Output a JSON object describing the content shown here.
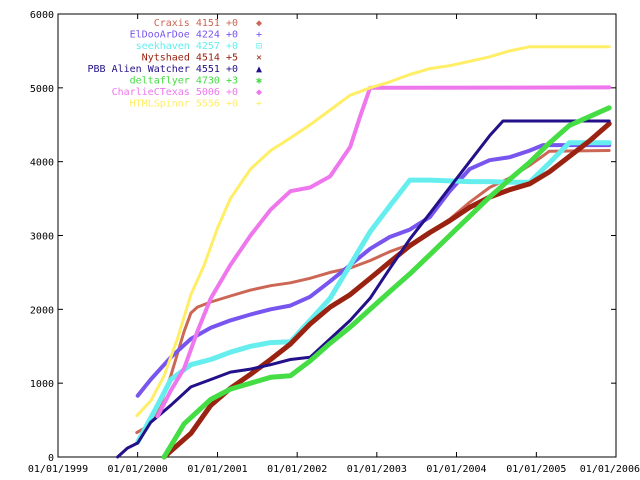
{
  "chart_data": {
    "type": "line",
    "title": "",
    "xlabel": "",
    "ylabel": "",
    "xlim": [
      "1999-01-01",
      "2006-01-01"
    ],
    "ylim": [
      0,
      6000
    ],
    "x_ticks": [
      "01/01/1999",
      "01/01/2000",
      "01/01/2001",
      "01/01/2002",
      "01/01/2003",
      "01/01/2004",
      "01/01/2005",
      "01/01/2006"
    ],
    "y_ticks": [
      0,
      1000,
      2000,
      3000,
      4000,
      5000,
      6000
    ],
    "grid": false,
    "legend_position": "top-center",
    "series": [
      {
        "name": "Craxis",
        "last": "4151",
        "delta": "+0",
        "marker": "◆",
        "color": "#cc6655",
        "width": 3,
        "points": [
          [
            "1999-12-28",
            330
          ],
          [
            "2000-02-01",
            390
          ],
          [
            "2000-04-01",
            600
          ],
          [
            "2000-06-01",
            1100
          ],
          [
            "2000-08-01",
            1700
          ],
          [
            "2000-09-01",
            1950
          ],
          [
            "2000-10-01",
            2030
          ],
          [
            "2000-12-01",
            2100
          ],
          [
            "2001-03-01",
            2180
          ],
          [
            "2001-06-01",
            2260
          ],
          [
            "2001-09-01",
            2320
          ],
          [
            "2001-12-01",
            2360
          ],
          [
            "2002-03-01",
            2420
          ],
          [
            "2002-06-01",
            2500
          ],
          [
            "2002-09-01",
            2560
          ],
          [
            "2002-12-01",
            2660
          ],
          [
            "2003-03-01",
            2780
          ],
          [
            "2003-06-01",
            2880
          ],
          [
            "2003-09-01",
            3040
          ],
          [
            "2003-12-01",
            3220
          ],
          [
            "2004-03-01",
            3450
          ],
          [
            "2004-06-01",
            3650
          ],
          [
            "2004-09-01",
            3780
          ],
          [
            "2004-12-01",
            3950
          ],
          [
            "2005-02-01",
            4080
          ],
          [
            "2005-03-01",
            4140
          ],
          [
            "2005-12-01",
            4151
          ]
        ]
      },
      {
        "name": "ElDooArDoe",
        "last": "4224",
        "delta": "+0",
        "marker": "+",
        "color": "#7755ee",
        "width": 4,
        "points": [
          [
            "2000-01-01",
            830
          ],
          [
            "2000-03-01",
            1050
          ],
          [
            "2000-06-01",
            1350
          ],
          [
            "2000-09-01",
            1600
          ],
          [
            "2000-12-01",
            1750
          ],
          [
            "2001-03-01",
            1850
          ],
          [
            "2001-06-01",
            1930
          ],
          [
            "2001-09-01",
            2000
          ],
          [
            "2001-12-01",
            2050
          ],
          [
            "2002-03-01",
            2170
          ],
          [
            "2002-06-01",
            2380
          ],
          [
            "2002-09-01",
            2600
          ],
          [
            "2002-12-01",
            2820
          ],
          [
            "2003-03-01",
            2980
          ],
          [
            "2003-06-01",
            3080
          ],
          [
            "2003-09-01",
            3250
          ],
          [
            "2003-12-01",
            3600
          ],
          [
            "2004-03-01",
            3900
          ],
          [
            "2004-06-01",
            4020
          ],
          [
            "2004-09-01",
            4060
          ],
          [
            "2004-12-01",
            4150
          ],
          [
            "2005-02-01",
            4224
          ],
          [
            "2005-12-01",
            4224
          ]
        ]
      },
      {
        "name": "seekhaven",
        "last": "4257",
        "delta": "+0",
        "marker": "⊡",
        "color": "#66eeee",
        "width": 5,
        "points": [
          [
            "2000-01-01",
            200
          ],
          [
            "2000-04-01",
            700
          ],
          [
            "2000-06-01",
            1050
          ],
          [
            "2000-09-01",
            1250
          ],
          [
            "2000-12-01",
            1320
          ],
          [
            "2001-03-01",
            1420
          ],
          [
            "2001-06-01",
            1500
          ],
          [
            "2001-09-01",
            1550
          ],
          [
            "2001-12-01",
            1560
          ],
          [
            "2002-03-01",
            1850
          ],
          [
            "2002-06-01",
            2150
          ],
          [
            "2002-09-01",
            2600
          ],
          [
            "2002-12-01",
            3050
          ],
          [
            "2003-03-01",
            3400
          ],
          [
            "2003-06-01",
            3750
          ],
          [
            "2003-09-01",
            3750
          ],
          [
            "2003-12-01",
            3740
          ],
          [
            "2004-03-01",
            3730
          ],
          [
            "2004-06-01",
            3730
          ],
          [
            "2004-09-01",
            3720
          ],
          [
            "2004-12-01",
            3720
          ],
          [
            "2005-03-01",
            3980
          ],
          [
            "2005-06-01",
            4257
          ],
          [
            "2005-12-01",
            4257
          ]
        ]
      },
      {
        "name": "Nytshaed",
        "last": "4514",
        "delta": "+5",
        "marker": "×",
        "color": "#992211",
        "width": 5,
        "points": [
          [
            "2000-05-01",
            0
          ],
          [
            "2000-09-01",
            320
          ],
          [
            "2000-12-01",
            700
          ],
          [
            "2001-03-01",
            930
          ],
          [
            "2001-06-01",
            1120
          ],
          [
            "2001-09-01",
            1320
          ],
          [
            "2001-12-01",
            1530
          ],
          [
            "2002-03-01",
            1800
          ],
          [
            "2002-06-01",
            2030
          ],
          [
            "2002-09-01",
            2200
          ],
          [
            "2002-12-01",
            2420
          ],
          [
            "2003-03-01",
            2640
          ],
          [
            "2003-06-01",
            2860
          ],
          [
            "2003-09-01",
            3040
          ],
          [
            "2003-12-01",
            3200
          ],
          [
            "2004-03-01",
            3380
          ],
          [
            "2004-06-01",
            3520
          ],
          [
            "2004-09-01",
            3620
          ],
          [
            "2004-12-01",
            3700
          ],
          [
            "2005-03-01",
            3860
          ],
          [
            "2005-06-01",
            4070
          ],
          [
            "2005-09-01",
            4280
          ],
          [
            "2005-12-01",
            4514
          ]
        ]
      },
      {
        "name": "PBB Alien Watcher",
        "last": "4551",
        "delta": "+0",
        "marker": "▲",
        "color": "#221188",
        "width": 3,
        "points": [
          [
            "1999-10-01",
            0
          ],
          [
            "1999-11-15",
            120
          ],
          [
            "2000-01-01",
            190
          ],
          [
            "2000-03-01",
            470
          ],
          [
            "2000-06-01",
            700
          ],
          [
            "2000-09-01",
            950
          ],
          [
            "2000-12-01",
            1050
          ],
          [
            "2001-03-01",
            1150
          ],
          [
            "2001-06-01",
            1190
          ],
          [
            "2001-09-01",
            1250
          ],
          [
            "2001-12-01",
            1320
          ],
          [
            "2002-03-01",
            1350
          ],
          [
            "2002-06-01",
            1600
          ],
          [
            "2002-09-01",
            1850
          ],
          [
            "2002-12-01",
            2150
          ],
          [
            "2003-03-01",
            2550
          ],
          [
            "2003-06-01",
            2950
          ],
          [
            "2003-09-01",
            3300
          ],
          [
            "2003-12-01",
            3650
          ],
          [
            "2004-03-01",
            4000
          ],
          [
            "2004-06-01",
            4350
          ],
          [
            "2004-08-01",
            4551
          ],
          [
            "2005-12-01",
            4551
          ]
        ]
      },
      {
        "name": "deltaflyer",
        "last": "4730",
        "delta": "+3",
        "marker": "✱",
        "color": "#44dd44",
        "width": 5,
        "points": [
          [
            "2000-05-01",
            0
          ],
          [
            "2000-08-01",
            450
          ],
          [
            "2000-12-01",
            780
          ],
          [
            "2001-03-01",
            920
          ],
          [
            "2001-06-01",
            1000
          ],
          [
            "2001-09-01",
            1080
          ],
          [
            "2001-12-01",
            1100
          ],
          [
            "2002-03-01",
            1300
          ],
          [
            "2002-06-01",
            1540
          ],
          [
            "2002-09-01",
            1760
          ],
          [
            "2002-12-01",
            2000
          ],
          [
            "2003-03-01",
            2240
          ],
          [
            "2003-06-01",
            2480
          ],
          [
            "2003-09-01",
            2740
          ],
          [
            "2003-12-01",
            3000
          ],
          [
            "2004-03-01",
            3260
          ],
          [
            "2004-06-01",
            3520
          ],
          [
            "2004-09-01",
            3760
          ],
          [
            "2004-12-01",
            3990
          ],
          [
            "2005-03-01",
            4250
          ],
          [
            "2005-06-01",
            4490
          ],
          [
            "2005-12-01",
            4730
          ]
        ]
      },
      {
        "name": "CharlieCTexas",
        "last": "5006",
        "delta": "+0",
        "marker": "◆",
        "color": "#ee77ee",
        "width": 4,
        "points": [
          [
            "2000-04-01",
            550
          ],
          [
            "2000-06-01",
            900
          ],
          [
            "2000-08-01",
            1200
          ],
          [
            "2000-10-01",
            1700
          ],
          [
            "2000-12-01",
            2150
          ],
          [
            "2001-03-01",
            2600
          ],
          [
            "2001-06-01",
            3000
          ],
          [
            "2001-09-01",
            3350
          ],
          [
            "2001-12-01",
            3600
          ],
          [
            "2002-03-01",
            3650
          ],
          [
            "2002-06-01",
            3800
          ],
          [
            "2002-09-01",
            4200
          ],
          [
            "2002-10-15",
            4600
          ],
          [
            "2002-12-01",
            5000
          ],
          [
            "2005-12-01",
            5006
          ]
        ]
      },
      {
        "name": "HTMLSpinnr",
        "last": "5556",
        "delta": "+0",
        "marker": "+",
        "color": "#ffee66",
        "width": 3,
        "points": [
          [
            "1999-12-28",
            560
          ],
          [
            "2000-03-01",
            760
          ],
          [
            "2000-05-01",
            1100
          ],
          [
            "2000-07-01",
            1600
          ],
          [
            "2000-09-01",
            2200
          ],
          [
            "2000-11-01",
            2600
          ],
          [
            "2001-01-01",
            3100
          ],
          [
            "2001-03-01",
            3500
          ],
          [
            "2001-06-01",
            3900
          ],
          [
            "2001-09-01",
            4150
          ],
          [
            "2001-12-01",
            4320
          ],
          [
            "2002-03-01",
            4500
          ],
          [
            "2002-06-01",
            4700
          ],
          [
            "2002-09-01",
            4900
          ],
          [
            "2002-12-01",
            5000
          ],
          [
            "2003-03-01",
            5080
          ],
          [
            "2003-06-01",
            5180
          ],
          [
            "2003-09-01",
            5260
          ],
          [
            "2003-12-01",
            5300
          ],
          [
            "2004-03-01",
            5360
          ],
          [
            "2004-06-01",
            5420
          ],
          [
            "2004-09-01",
            5500
          ],
          [
            "2004-12-01",
            5556
          ],
          [
            "2005-12-01",
            5556
          ]
        ]
      }
    ]
  }
}
